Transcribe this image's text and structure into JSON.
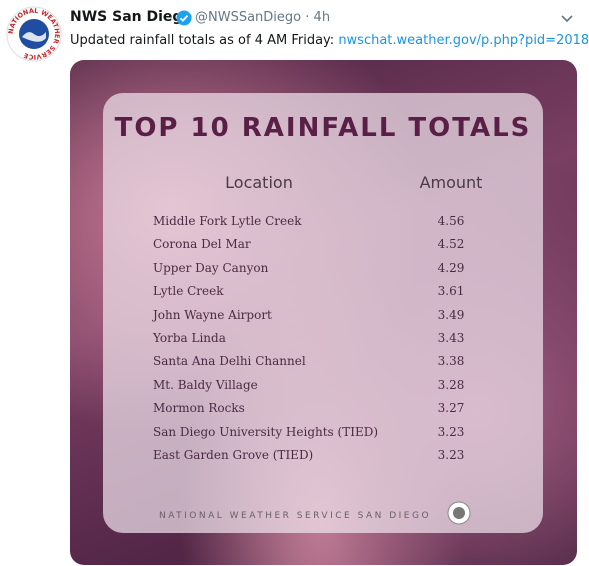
{
  "tweet": {
    "logo_text": "NATIONAL WEATHER SERVICE",
    "name": "NWS San Diego",
    "handle": "@NWSSanDiego",
    "separator": "·",
    "time": "4h",
    "text": "Updated rainfall totals as of 4 AM Friday: ",
    "link": "nwschat.weather.gov/p.php?pid=2018…"
  },
  "image": {
    "title": "TOP 10 RAINFALL TOTALS",
    "table": {
      "header": [
        "Location",
        "Amount"
      ],
      "rows": [
        [
          "Middle Fork Lytle Creek",
          "4.56"
        ],
        [
          "Corona Del Mar",
          "4.52"
        ],
        [
          "Upper Day Canyon",
          "4.29"
        ],
        [
          "Lytle Creek",
          "3.61"
        ],
        [
          "John Wayne Airport",
          "3.49"
        ],
        [
          "Yorba Linda",
          "3.43"
        ],
        [
          "Santa Ana Delhi Channel",
          "3.38"
        ],
        [
          "Mt. Baldy Village",
          "3.28"
        ],
        [
          "Mormon Rocks",
          "3.27"
        ],
        [
          "San Diego University Heights  (TIED)",
          "3.23"
        ],
        [
          "East Garden Grove (TIED)",
          "3.23"
        ]
      ]
    },
    "footer": "NATIONAL WEATHER SERVICE SAN DIEGO"
  }
}
